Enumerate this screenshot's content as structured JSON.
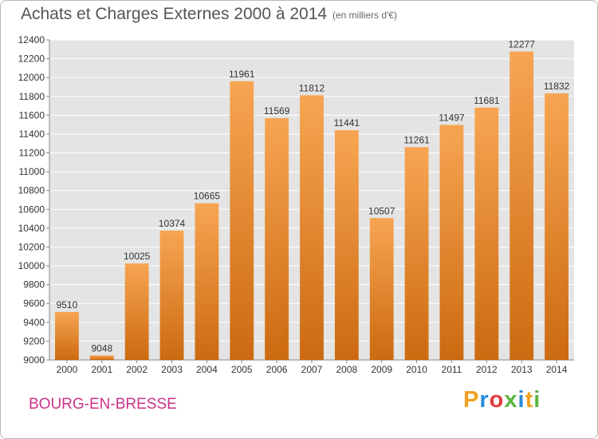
{
  "header": {
    "title": "Achats et Charges Externes 2000 à 2014",
    "subtitle": "(en milliers d'€)"
  },
  "footer": {
    "city": "BOURG-EN-BRESSE",
    "brand": "Proxiti",
    "brand_colors": [
      "#f0a020",
      "#2a8ad8",
      "#e03a3a",
      "#5ab540",
      "#2a8ad8",
      "#f0a020",
      "#5ab540"
    ]
  },
  "colors": {
    "bar_top": "#f7a552",
    "bar_bottom": "#cc6a10",
    "plot_bg": "#e4e4e4",
    "grid": "#ffffff",
    "axis_text": "#333333"
  },
  "chart_data": {
    "type": "bar",
    "categories": [
      "2000",
      "2001",
      "2002",
      "2003",
      "2004",
      "2005",
      "2006",
      "2007",
      "2008",
      "2009",
      "2010",
      "2011",
      "2012",
      "2013",
      "2014"
    ],
    "values": [
      9510,
      9048,
      10025,
      10374,
      10665,
      11961,
      11569,
      11812,
      11441,
      10507,
      11261,
      11497,
      11681,
      12277,
      11832
    ],
    "ylim": [
      9000,
      12400
    ],
    "yticks": [
      9000,
      9200,
      9400,
      9600,
      9800,
      10000,
      10200,
      10400,
      10600,
      10800,
      11000,
      11200,
      11400,
      11600,
      11800,
      12000,
      12200,
      12400
    ],
    "grid": true,
    "legend": "none"
  }
}
